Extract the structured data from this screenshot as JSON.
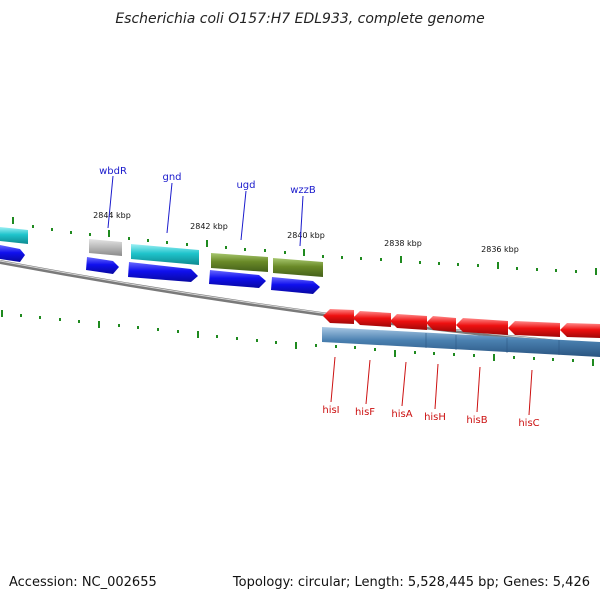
{
  "title": "Escherichia coli O157:H7 EDL933, complete genome",
  "footer": {
    "accession": "Accession: NC_002655",
    "summary": "Topology: circular; Length: 5,528,445 bp; Genes: 5,426"
  },
  "colors": {
    "forward_label": "#1a1acc",
    "reverse_label": "#cc1111",
    "tick": "#1f8a1f",
    "backbone": "#808080",
    "cds_blue": "#1010ee",
    "cyan_feature": "#1fc4cc",
    "olive_feature": "#6a8a28",
    "gray_feature": "#b0b0b0",
    "red_feature": "#ee1010",
    "steel_feature": "#4a80b0"
  },
  "kbp_labels": [
    "2844 kbp",
    "2842 kbp",
    "2840 kbp",
    "2838 kbp",
    "2836 kbp"
  ],
  "forward_genes": [
    {
      "label": "wbdR",
      "color": "gray"
    },
    {
      "label": "gnd",
      "color": "cyan"
    },
    {
      "label": "ugd",
      "color": "olive"
    },
    {
      "label": "wzzB",
      "color": "olive"
    }
  ],
  "reverse_genes": [
    {
      "label": "hisI"
    },
    {
      "label": "hisF"
    },
    {
      "label": "hisA"
    },
    {
      "label": "hisH"
    },
    {
      "label": "hisB"
    },
    {
      "label": "hisC"
    }
  ]
}
